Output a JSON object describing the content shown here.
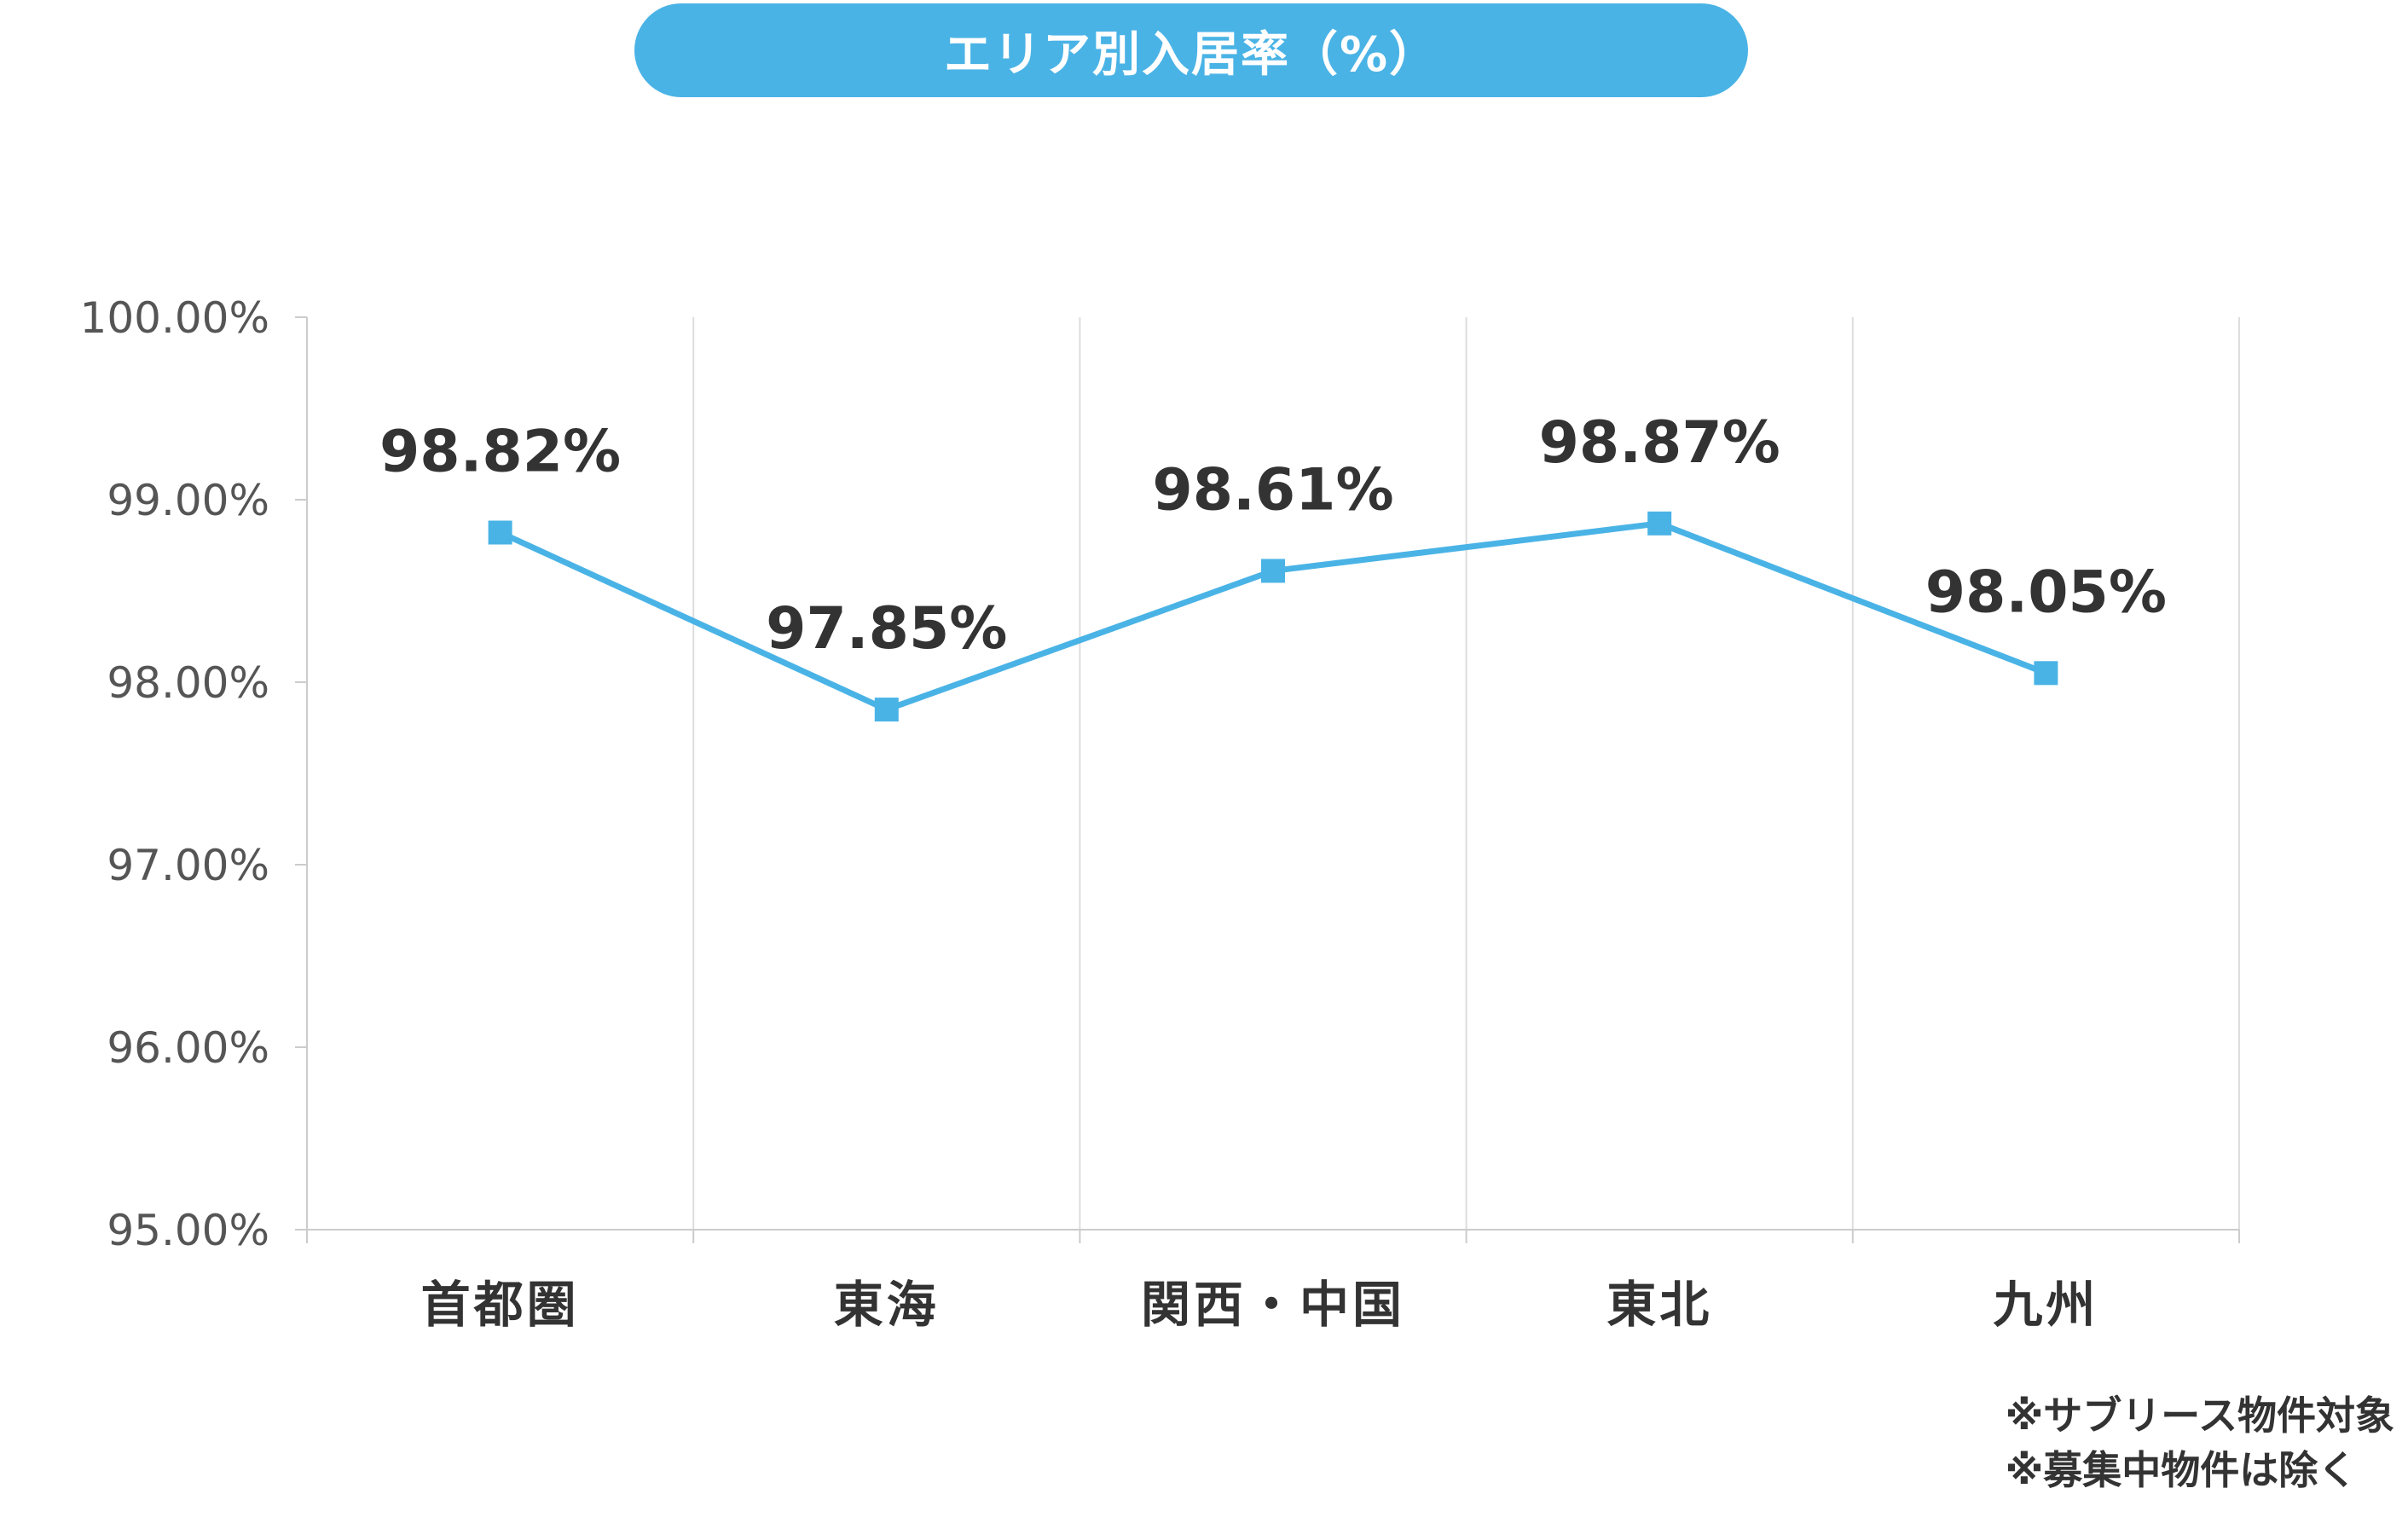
{
  "title": "エリア別入居率（%）",
  "chart_data": {
    "type": "line",
    "categories": [
      "首都圏",
      "東海",
      "関西・中国",
      "東北",
      "九州"
    ],
    "values": [
      98.82,
      97.85,
      98.61,
      98.87,
      98.05
    ],
    "data_labels": [
      "98.82%",
      "97.85%",
      "98.61%",
      "98.87%",
      "98.05%"
    ],
    "ylim": [
      95,
      100
    ],
    "yticks": [
      100,
      99,
      98,
      97,
      96,
      95
    ],
    "ytick_labels": [
      "100.00%",
      "99.00%",
      "98.00%",
      "97.00%",
      "96.00%",
      "95.00%"
    ],
    "grid": "vertical",
    "marker": "square",
    "line_color": "#4ab3e6",
    "label_color": "#333333"
  },
  "footnotes": [
    "※サブリース物件対象",
    "※募集中物件は除く"
  ]
}
